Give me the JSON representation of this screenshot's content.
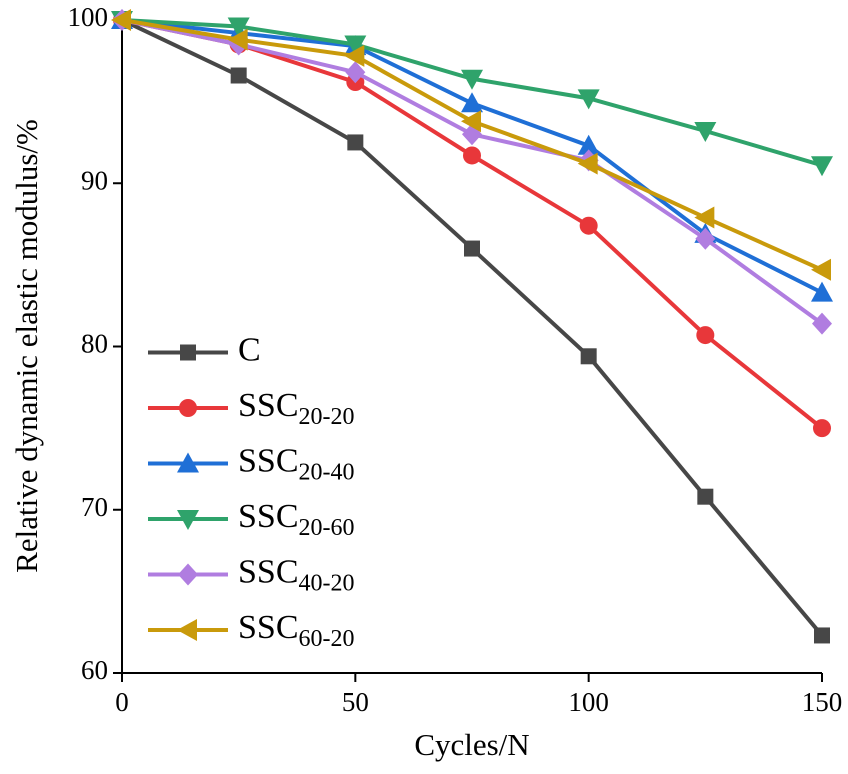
{
  "chart_data": {
    "type": "line",
    "x_label": "Cycles/N",
    "y_label": "Relative dynamic elastic modulus/%",
    "x": [
      0,
      25,
      50,
      75,
      100,
      125,
      150
    ],
    "xlim": [
      0,
      150
    ],
    "xticks": [
      0,
      50,
      100,
      150
    ],
    "ylim": [
      60,
      100
    ],
    "yticks": [
      60,
      70,
      80,
      90,
      100
    ],
    "legend": "lower left",
    "series": [
      {
        "name": "C",
        "color": "#474747",
        "marker": "square",
        "values": [
          100,
          96.6,
          92.5,
          86.0,
          79.4,
          70.8,
          62.3
        ]
      },
      {
        "name": "SSC20-20",
        "color": "#e8373a",
        "marker": "circle",
        "values": [
          100,
          98.5,
          96.2,
          91.7,
          87.4,
          80.7,
          75.0
        ]
      },
      {
        "name": "SSC20-40",
        "color": "#1f6fd6",
        "marker": "triangle-up",
        "values": [
          100,
          99.2,
          98.4,
          94.9,
          92.3,
          86.9,
          83.3
        ]
      },
      {
        "name": "SSC20-60",
        "color": "#2fa36b",
        "marker": "triangle-down",
        "values": [
          100,
          99.6,
          98.5,
          96.4,
          95.2,
          93.2,
          91.1
        ]
      },
      {
        "name": "SSC40-20",
        "color": "#b07de0",
        "marker": "diamond",
        "values": [
          100,
          98.5,
          96.8,
          93.0,
          91.4,
          86.6,
          81.4
        ]
      },
      {
        "name": "SSC60-20",
        "color": "#c99a0b",
        "marker": "triangle-left",
        "values": [
          100,
          98.8,
          97.8,
          93.8,
          91.2,
          87.9,
          84.7
        ]
      }
    ]
  }
}
